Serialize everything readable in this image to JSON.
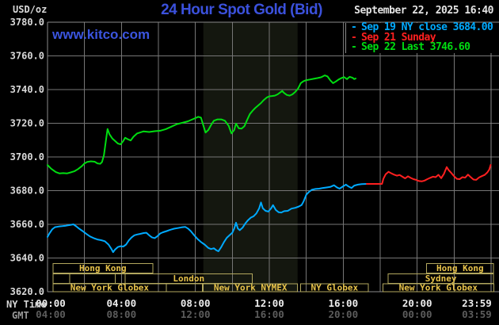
{
  "header": {
    "unit_label": "USD/oz",
    "title": "24 Hour Spot Gold (Bid)",
    "datetime": "September 22, 2025 16:40",
    "watermark": "www.kitco.com"
  },
  "legend": {
    "items": [
      {
        "dash": "-",
        "label": "Sep 19 NY close 3684.00",
        "color": "#00aaff"
      },
      {
        "dash": "-",
        "label": "Sep 21 Sunday",
        "color": "#ff2020"
      },
      {
        "dash": "-",
        "label": "Sep 22 Last 3746.60",
        "color": "#00dd11"
      }
    ]
  },
  "axes": {
    "ny_time_label": "NY Time",
    "gmt_label": "GMT",
    "y_ticks": [
      "3780.0",
      "3760.0",
      "3740.0",
      "3720.0",
      "3700.0",
      "3680.0",
      "3660.0",
      "3640.0",
      "3620.0"
    ],
    "x_ticks_ny": [
      {
        "hour": 0,
        "label": "00:00"
      },
      {
        "hour": 4,
        "label": "04:00"
      },
      {
        "hour": 8,
        "label": "08:00"
      },
      {
        "hour": 12,
        "label": "12:00"
      },
      {
        "hour": 16,
        "label": "16:00"
      },
      {
        "hour": 20,
        "label": "20:00"
      },
      {
        "hour": 23.98,
        "label": "23:59"
      }
    ],
    "x_ticks_gmt": [
      {
        "hour": 0,
        "label": "04:00"
      },
      {
        "hour": 4,
        "label": "08:00"
      },
      {
        "hour": 8,
        "label": "12:00"
      },
      {
        "hour": 12,
        "label": "16:00"
      },
      {
        "hour": 16,
        "label": "20:00"
      },
      {
        "hour": 20,
        "label": "00:00"
      },
      {
        "hour": 23.98,
        "label": "03:59"
      }
    ]
  },
  "sessions": {
    "label_color": "#e8c34a",
    "box_color": "#b2a75e",
    "rows": [
      {
        "boxes": [
          {
            "start_hour": 0.29,
            "end_hour": 5.69,
            "label": "Hong Kong"
          },
          {
            "start_hour": 20.5,
            "end_hour": 24.14,
            "label": "Hong Kong"
          }
        ]
      },
      {
        "boxes": [
          {
            "start_hour": 0.29,
            "end_hour": 1.19,
            "label": ""
          },
          {
            "start_hour": 1.19,
            "end_hour": 3.67,
            "label": ""
          },
          {
            "start_hour": 3.67,
            "end_hour": 4.21,
            "label": ""
          },
          {
            "start_hour": 4.21,
            "end_hour": 11.07,
            "label": "London"
          },
          {
            "start_hour": 18.43,
            "end_hour": 24.14,
            "label": "Sydney"
          }
        ]
      },
      {
        "boxes": [
          {
            "start_hour": 0.29,
            "end_hour": 6.43,
            "label": "New York Globex"
          },
          {
            "start_hour": 6.43,
            "end_hour": 8.39,
            "label": ""
          },
          {
            "start_hour": 8.43,
            "end_hour": 13.53,
            "label": "New York NYMEX"
          },
          {
            "start_hour": 13.69,
            "end_hour": 17.36,
            "label": "NY Globex"
          },
          {
            "start_hour": 18.14,
            "end_hour": 24.14,
            "label": "New York Globex"
          }
        ]
      }
    ]
  },
  "chart_data": {
    "type": "line",
    "title": "24 Hour Spot Gold (Bid)",
    "xlabel": "NY Time",
    "ylabel": "USD/oz",
    "x_range_hours": [
      0,
      24
    ],
    "x_gridline_every_hours": 2,
    "ylim": [
      3620,
      3780
    ],
    "y_tick_step": 20,
    "grid": true,
    "legend_position": "top-right",
    "colors": {
      "grid": "#767676",
      "border": "#8a8a8a",
      "background": "#000000",
      "nymex_band": "#14170f"
    },
    "highlight_band": {
      "label": "New York NYMEX session",
      "from_hour": 8.43,
      "to_hour": 13.53
    },
    "series": [
      {
        "name": "Sep 19 NY close 3684.00",
        "color": "#00aaff",
        "points": [
          [
            0,
            3652.5
          ],
          [
            0.1,
            3654.5
          ],
          [
            0.25,
            3657
          ],
          [
            0.4,
            3658.3
          ],
          [
            0.6,
            3658.7
          ],
          [
            0.8,
            3658.9
          ],
          [
            1,
            3659.2
          ],
          [
            1.2,
            3659.6
          ],
          [
            1.4,
            3660
          ],
          [
            1.55,
            3658.8
          ],
          [
            1.7,
            3657.5
          ],
          [
            1.9,
            3656
          ],
          [
            2.1,
            3654.3
          ],
          [
            2.3,
            3652.8
          ],
          [
            2.5,
            3651.8
          ],
          [
            2.7,
            3651
          ],
          [
            2.9,
            3650.6
          ],
          [
            3.1,
            3650
          ],
          [
            3.3,
            3648
          ],
          [
            3.45,
            3645.5
          ],
          [
            3.55,
            3643.5
          ],
          [
            3.65,
            3645
          ],
          [
            3.8,
            3646.5
          ],
          [
            3.95,
            3647
          ],
          [
            4.1,
            3646.8
          ],
          [
            4.25,
            3648
          ],
          [
            4.4,
            3650.5
          ],
          [
            4.55,
            3652.3
          ],
          [
            4.7,
            3653.5
          ],
          [
            4.85,
            3654
          ],
          [
            5,
            3654.3
          ],
          [
            5.2,
            3654.8
          ],
          [
            5.35,
            3655
          ],
          [
            5.5,
            3653.5
          ],
          [
            5.65,
            3652.3
          ],
          [
            5.8,
            3651.8
          ],
          [
            5.95,
            3653
          ],
          [
            6.1,
            3654.6
          ],
          [
            6.25,
            3655.3
          ],
          [
            6.45,
            3656
          ],
          [
            6.65,
            3656.8
          ],
          [
            6.85,
            3657.4
          ],
          [
            7.05,
            3657.8
          ],
          [
            7.25,
            3658.2
          ],
          [
            7.45,
            3658.5
          ],
          [
            7.6,
            3657.5
          ],
          [
            7.75,
            3656
          ],
          [
            7.9,
            3654
          ],
          [
            8.1,
            3651.5
          ],
          [
            8.3,
            3649.5
          ],
          [
            8.5,
            3648
          ],
          [
            8.7,
            3646
          ],
          [
            8.85,
            3645.3
          ],
          [
            9,
            3645.8
          ],
          [
            9.15,
            3644.5
          ],
          [
            9.25,
            3644
          ],
          [
            9.4,
            3646.5
          ],
          [
            9.55,
            3649.5
          ],
          [
            9.7,
            3652
          ],
          [
            9.85,
            3653.5
          ],
          [
            10,
            3655
          ],
          [
            10.1,
            3657.5
          ],
          [
            10.2,
            3661
          ],
          [
            10.3,
            3657.5
          ],
          [
            10.4,
            3656.5
          ],
          [
            10.55,
            3658
          ],
          [
            10.7,
            3660.5
          ],
          [
            10.85,
            3662.5
          ],
          [
            11,
            3664
          ],
          [
            11.15,
            3664.8
          ],
          [
            11.3,
            3666.5
          ],
          [
            11.45,
            3669.5
          ],
          [
            11.55,
            3673
          ],
          [
            11.65,
            3669.5
          ],
          [
            11.8,
            3668
          ],
          [
            11.95,
            3667.6
          ],
          [
            12.1,
            3669.5
          ],
          [
            12.2,
            3671.4
          ],
          [
            12.35,
            3668.5
          ],
          [
            12.5,
            3667.2
          ],
          [
            12.65,
            3667
          ],
          [
            12.8,
            3667.8
          ],
          [
            13,
            3668
          ],
          [
            13.2,
            3669.3
          ],
          [
            13.4,
            3669.8
          ],
          [
            13.6,
            3670.6
          ],
          [
            13.75,
            3671.5
          ],
          [
            13.85,
            3673.5
          ],
          [
            14,
            3677.6
          ],
          [
            14.15,
            3679.3
          ],
          [
            14.3,
            3680.5
          ],
          [
            14.5,
            3681
          ],
          [
            14.7,
            3681.2
          ],
          [
            14.9,
            3681.6
          ],
          [
            15.1,
            3681.9
          ],
          [
            15.3,
            3682.2
          ],
          [
            15.5,
            3683.2
          ],
          [
            15.65,
            3682
          ],
          [
            15.8,
            3681.2
          ],
          [
            16,
            3682.6
          ],
          [
            16.15,
            3683.6
          ],
          [
            16.3,
            3682.4
          ],
          [
            16.45,
            3681.6
          ],
          [
            16.6,
            3683
          ],
          [
            16.8,
            3683.6
          ],
          [
            17,
            3683.9
          ],
          [
            17.27,
            3684
          ]
        ]
      },
      {
        "name": "Sep 21 Sunday",
        "color": "#ff2020",
        "points": [
          [
            17.27,
            3684
          ],
          [
            18.1,
            3684
          ],
          [
            18.17,
            3687
          ],
          [
            18.3,
            3689.8
          ],
          [
            18.45,
            3691.2
          ],
          [
            18.6,
            3690.3
          ],
          [
            18.75,
            3689.5
          ],
          [
            18.9,
            3688.9
          ],
          [
            19.05,
            3689.3
          ],
          [
            19.2,
            3688.3
          ],
          [
            19.35,
            3687.3
          ],
          [
            19.5,
            3688.5
          ],
          [
            19.65,
            3687.6
          ],
          [
            19.8,
            3686.8
          ],
          [
            19.95,
            3686.4
          ],
          [
            20.1,
            3685.7
          ],
          [
            20.25,
            3685.5
          ],
          [
            20.4,
            3686
          ],
          [
            20.55,
            3686.8
          ],
          [
            20.7,
            3687.6
          ],
          [
            20.85,
            3688.3
          ],
          [
            21,
            3688
          ],
          [
            21.15,
            3689.4
          ],
          [
            21.3,
            3687.4
          ],
          [
            21.45,
            3690
          ],
          [
            21.6,
            3694
          ],
          [
            21.7,
            3692.3
          ],
          [
            21.85,
            3690.5
          ],
          [
            22,
            3688.5
          ],
          [
            22.15,
            3687
          ],
          [
            22.3,
            3686.8
          ],
          [
            22.45,
            3688
          ],
          [
            22.6,
            3687.7
          ],
          [
            22.75,
            3689.5
          ],
          [
            22.9,
            3688
          ],
          [
            23.05,
            3686.6
          ],
          [
            23.2,
            3686.4
          ],
          [
            23.35,
            3687.8
          ],
          [
            23.5,
            3688.6
          ],
          [
            23.65,
            3689.3
          ],
          [
            23.8,
            3690.8
          ],
          [
            23.9,
            3692.5
          ],
          [
            23.98,
            3695.3
          ]
        ]
      },
      {
        "name": "Sep 22 Last 3746.60",
        "color": "#00dd11",
        "points": [
          [
            0,
            3695.2
          ],
          [
            0.2,
            3693
          ],
          [
            0.45,
            3691
          ],
          [
            0.65,
            3690.2
          ],
          [
            0.85,
            3690.4
          ],
          [
            1.05,
            3690.2
          ],
          [
            1.25,
            3690.8
          ],
          [
            1.45,
            3691.5
          ],
          [
            1.65,
            3692.8
          ],
          [
            1.85,
            3694.5
          ],
          [
            2,
            3696.2
          ],
          [
            2.15,
            3697.1
          ],
          [
            2.35,
            3697.4
          ],
          [
            2.55,
            3697.2
          ],
          [
            2.7,
            3696.2
          ],
          [
            2.85,
            3695.9
          ],
          [
            2.95,
            3697
          ],
          [
            3.05,
            3701
          ],
          [
            3.15,
            3709
          ],
          [
            3.25,
            3716.6
          ],
          [
            3.35,
            3713.5
          ],
          [
            3.5,
            3711
          ],
          [
            3.65,
            3709.5
          ],
          [
            3.8,
            3708
          ],
          [
            3.95,
            3707.5
          ],
          [
            4.1,
            3709.5
          ],
          [
            4.2,
            3711.4
          ],
          [
            4.35,
            3710.5
          ],
          [
            4.5,
            3709.8
          ],
          [
            4.65,
            3712
          ],
          [
            4.85,
            3714
          ],
          [
            5,
            3714.5
          ],
          [
            5.2,
            3715.2
          ],
          [
            5.5,
            3714.8
          ],
          [
            5.8,
            3715.3
          ],
          [
            6.1,
            3715.6
          ],
          [
            6.4,
            3716.5
          ],
          [
            6.7,
            3718
          ],
          [
            7,
            3719.5
          ],
          [
            7.3,
            3720.3
          ],
          [
            7.6,
            3721.2
          ],
          [
            7.9,
            3722.6
          ],
          [
            8.15,
            3723.8
          ],
          [
            8.3,
            3723.4
          ],
          [
            8.45,
            3718
          ],
          [
            8.55,
            3714.5
          ],
          [
            8.7,
            3716
          ],
          [
            8.85,
            3719
          ],
          [
            9,
            3721.5
          ],
          [
            9.2,
            3722.3
          ],
          [
            9.4,
            3722.3
          ],
          [
            9.6,
            3721.5
          ],
          [
            9.8,
            3718.5
          ],
          [
            9.95,
            3714
          ],
          [
            10.1,
            3716
          ],
          [
            10.2,
            3719.8
          ],
          [
            10.35,
            3717
          ],
          [
            10.5,
            3716.8
          ],
          [
            10.65,
            3718.2
          ],
          [
            10.8,
            3722
          ],
          [
            10.95,
            3725.5
          ],
          [
            11.1,
            3727.5
          ],
          [
            11.25,
            3729.2
          ],
          [
            11.4,
            3730.6
          ],
          [
            11.55,
            3732
          ],
          [
            11.7,
            3733.8
          ],
          [
            11.85,
            3735.2
          ],
          [
            12,
            3736
          ],
          [
            12.15,
            3736.2
          ],
          [
            12.3,
            3736.4
          ],
          [
            12.45,
            3737.2
          ],
          [
            12.6,
            3738.4
          ],
          [
            12.7,
            3739.2
          ],
          [
            12.8,
            3738
          ],
          [
            12.95,
            3736.8
          ],
          [
            13.1,
            3736.4
          ],
          [
            13.25,
            3737.2
          ],
          [
            13.4,
            3738.6
          ],
          [
            13.55,
            3740.5
          ],
          [
            13.7,
            3743.8
          ],
          [
            13.85,
            3745
          ],
          [
            14,
            3745.6
          ],
          [
            14.2,
            3746
          ],
          [
            14.4,
            3746.4
          ],
          [
            14.6,
            3746.8
          ],
          [
            14.8,
            3747.3
          ],
          [
            15,
            3748.4
          ],
          [
            15.15,
            3747.8
          ],
          [
            15.3,
            3745.5
          ],
          [
            15.45,
            3743.8
          ],
          [
            15.6,
            3744.8
          ],
          [
            15.75,
            3746
          ],
          [
            15.9,
            3746.8
          ],
          [
            16.05,
            3747.4
          ],
          [
            16.2,
            3746.2
          ],
          [
            16.35,
            3747.6
          ],
          [
            16.5,
            3747
          ],
          [
            16.6,
            3746.2
          ],
          [
            16.67,
            3746.6
          ]
        ]
      }
    ]
  }
}
